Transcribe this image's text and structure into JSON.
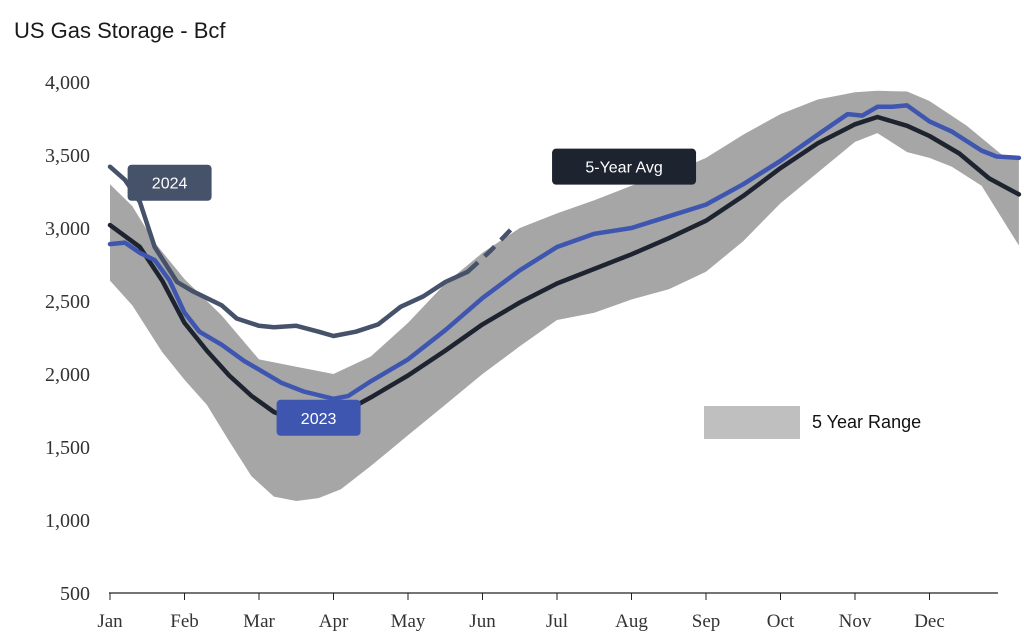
{
  "chart_data": {
    "type": "area",
    "title": "US Gas Storage - Bcf",
    "xlabel": "",
    "ylabel": "",
    "ylim": [
      500,
      4000
    ],
    "xlim": [
      1,
      13.2
    ],
    "yticks": [
      {
        "value": 500,
        "label": "500"
      },
      {
        "value": 1000,
        "label": "1,000"
      },
      {
        "value": 1500,
        "label": "1,500"
      },
      {
        "value": 2000,
        "label": "2,000"
      },
      {
        "value": 2500,
        "label": "2,500"
      },
      {
        "value": 3000,
        "label": "3,000"
      },
      {
        "value": 3500,
        "label": "3,500"
      },
      {
        "value": 4000,
        "label": "4,000"
      }
    ],
    "xticks": [
      {
        "pos": 1,
        "label": "Jan"
      },
      {
        "pos": 2,
        "label": "Feb"
      },
      {
        "pos": 3,
        "label": "Mar"
      },
      {
        "pos": 4,
        "label": "Apr"
      },
      {
        "pos": 5,
        "label": "May"
      },
      {
        "pos": 6,
        "label": "Jun"
      },
      {
        "pos": 7,
        "label": "Jul"
      },
      {
        "pos": 8,
        "label": "Aug"
      },
      {
        "pos": 9,
        "label": "Sep"
      },
      {
        "pos": 10,
        "label": "Oct"
      },
      {
        "pos": 11,
        "label": "Nov"
      },
      {
        "pos": 12,
        "label": "Dec"
      }
    ],
    "range": {
      "name": "5 Year Range",
      "color": "#a6a6a6",
      "upper": [
        [
          1,
          3300
        ],
        [
          1.3,
          3150
        ],
        [
          1.6,
          2900
        ],
        [
          2,
          2650
        ],
        [
          2.5,
          2400
        ],
        [
          3,
          2100
        ],
        [
          3.5,
          2050
        ],
        [
          4,
          2000
        ],
        [
          4.5,
          2120
        ],
        [
          5,
          2350
        ],
        [
          5.5,
          2620
        ],
        [
          6,
          2830
        ],
        [
          6.5,
          3000
        ],
        [
          7,
          3100
        ],
        [
          7.5,
          3190
        ],
        [
          8,
          3290
        ],
        [
          8.5,
          3370
        ],
        [
          9,
          3480
        ],
        [
          9.5,
          3640
        ],
        [
          10,
          3780
        ],
        [
          10.5,
          3880
        ],
        [
          11,
          3930
        ],
        [
          11.3,
          3940
        ],
        [
          11.7,
          3935
        ],
        [
          12,
          3870
        ],
        [
          12.5,
          3700
        ],
        [
          13,
          3490
        ],
        [
          13.2,
          3480
        ]
      ],
      "lower": [
        [
          1,
          2640
        ],
        [
          1.3,
          2470
        ],
        [
          1.7,
          2150
        ],
        [
          2,
          1960
        ],
        [
          2.3,
          1790
        ],
        [
          2.6,
          1540
        ],
        [
          2.9,
          1300
        ],
        [
          3.2,
          1160
        ],
        [
          3.5,
          1130
        ],
        [
          3.8,
          1150
        ],
        [
          4.1,
          1210
        ],
        [
          4.5,
          1370
        ],
        [
          5,
          1580
        ],
        [
          5.5,
          1790
        ],
        [
          6,
          2000
        ],
        [
          6.5,
          2190
        ],
        [
          7,
          2370
        ],
        [
          7.5,
          2420
        ],
        [
          8,
          2510
        ],
        [
          8.5,
          2580
        ],
        [
          9,
          2700
        ],
        [
          9.5,
          2910
        ],
        [
          10,
          3170
        ],
        [
          10.5,
          3380
        ],
        [
          11,
          3590
        ],
        [
          11.3,
          3650
        ],
        [
          11.7,
          3520
        ],
        [
          12,
          3480
        ],
        [
          12.3,
          3420
        ],
        [
          12.7,
          3290
        ],
        [
          13.2,
          2880
        ]
      ]
    },
    "series": [
      {
        "name": "5-Year Avg",
        "color": "#1d2430",
        "width": 4.5,
        "values": [
          [
            1,
            3020
          ],
          [
            1.4,
            2870
          ],
          [
            1.7,
            2640
          ],
          [
            2,
            2350
          ],
          [
            2.3,
            2160
          ],
          [
            2.6,
            1990
          ],
          [
            2.9,
            1850
          ],
          [
            3.2,
            1740
          ],
          [
            3.5,
            1680
          ],
          [
            3.8,
            1670
          ],
          [
            4,
            1700
          ],
          [
            4.5,
            1840
          ],
          [
            5,
            1990
          ],
          [
            5.5,
            2160
          ],
          [
            6,
            2340
          ],
          [
            6.5,
            2490
          ],
          [
            7,
            2620
          ],
          [
            7.5,
            2720
          ],
          [
            8,
            2820
          ],
          [
            8.5,
            2930
          ],
          [
            9,
            3050
          ],
          [
            9.5,
            3220
          ],
          [
            10,
            3410
          ],
          [
            10.5,
            3580
          ],
          [
            11,
            3710
          ],
          [
            11.3,
            3760
          ],
          [
            11.7,
            3700
          ],
          [
            12,
            3630
          ],
          [
            12.4,
            3510
          ],
          [
            12.8,
            3340
          ],
          [
            13.2,
            3230
          ]
        ]
      },
      {
        "name": "2023",
        "color": "#3f56b0",
        "width": 4.5,
        "values": [
          [
            1,
            2890
          ],
          [
            1.2,
            2900
          ],
          [
            1.4,
            2830
          ],
          [
            1.6,
            2780
          ],
          [
            1.8,
            2640
          ],
          [
            2,
            2420
          ],
          [
            2.2,
            2290
          ],
          [
            2.5,
            2200
          ],
          [
            2.8,
            2090
          ],
          [
            3,
            2030
          ],
          [
            3.3,
            1940
          ],
          [
            3.6,
            1880
          ],
          [
            4,
            1830
          ],
          [
            4.2,
            1850
          ],
          [
            4.5,
            1950
          ],
          [
            4.8,
            2040
          ],
          [
            5,
            2100
          ],
          [
            5.5,
            2300
          ],
          [
            6,
            2520
          ],
          [
            6.5,
            2710
          ],
          [
            7,
            2870
          ],
          [
            7.5,
            2960
          ],
          [
            8,
            3000
          ],
          [
            8.5,
            3080
          ],
          [
            9,
            3160
          ],
          [
            9.5,
            3300
          ],
          [
            10,
            3460
          ],
          [
            10.5,
            3640
          ],
          [
            10.9,
            3780
          ],
          [
            11.1,
            3770
          ],
          [
            11.3,
            3830
          ],
          [
            11.5,
            3830
          ],
          [
            11.7,
            3840
          ],
          [
            12,
            3730
          ],
          [
            12.3,
            3660
          ],
          [
            12.7,
            3530
          ],
          [
            12.9,
            3490
          ],
          [
            13.2,
            3480
          ]
        ]
      },
      {
        "name": "2024",
        "color": "#45526a",
        "width": 4.5,
        "values": [
          [
            1,
            3420
          ],
          [
            1.2,
            3330
          ],
          [
            1.4,
            3180
          ],
          [
            1.6,
            2870
          ],
          [
            1.9,
            2630
          ],
          [
            2.1,
            2570
          ],
          [
            2.5,
            2470
          ],
          [
            2.7,
            2380
          ],
          [
            3,
            2330
          ],
          [
            3.2,
            2320
          ],
          [
            3.5,
            2330
          ],
          [
            3.8,
            2290
          ],
          [
            4,
            2260
          ],
          [
            4.3,
            2290
          ],
          [
            4.6,
            2340
          ],
          [
            4.9,
            2460
          ],
          [
            5.2,
            2530
          ],
          [
            5.5,
            2630
          ],
          [
            5.8,
            2700
          ]
        ]
      },
      {
        "name": "2024 projection",
        "color": "#45526a",
        "width": 4.5,
        "dashed": true,
        "values": [
          [
            5.8,
            2700
          ],
          [
            6.1,
            2840
          ],
          [
            6.4,
            3000
          ]
        ]
      }
    ],
    "annotations": [
      {
        "text": "2024",
        "x": 1.8,
        "y": 3310,
        "bg": "#45526a",
        "fg": "#ffffff"
      },
      {
        "text": "5-Year Avg",
        "x": 7.9,
        "y": 3420,
        "bg": "#1d2430",
        "fg": "#ffffff"
      },
      {
        "text": "2023",
        "x": 3.8,
        "y": 1700,
        "bg": "#3f56b0",
        "fg": "#ffffff"
      }
    ],
    "legend": [
      {
        "label": "5 Year Range",
        "color": "#bfbfbf",
        "placement": "right"
      }
    ]
  }
}
